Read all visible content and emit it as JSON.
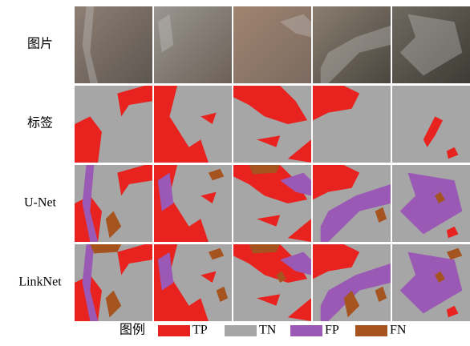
{
  "figure": {
    "row_labels": [
      "图片",
      "标签",
      "U-Net",
      "LinkNet"
    ],
    "legend": {
      "title": "图例",
      "items": [
        {
          "name": "TP",
          "color": "#e8231f"
        },
        {
          "name": "TN",
          "color": "#a6a6a6"
        },
        {
          "name": "FP",
          "color": "#9b59b6"
        },
        {
          "name": "FN",
          "color": "#a5531f"
        }
      ]
    }
  }
}
